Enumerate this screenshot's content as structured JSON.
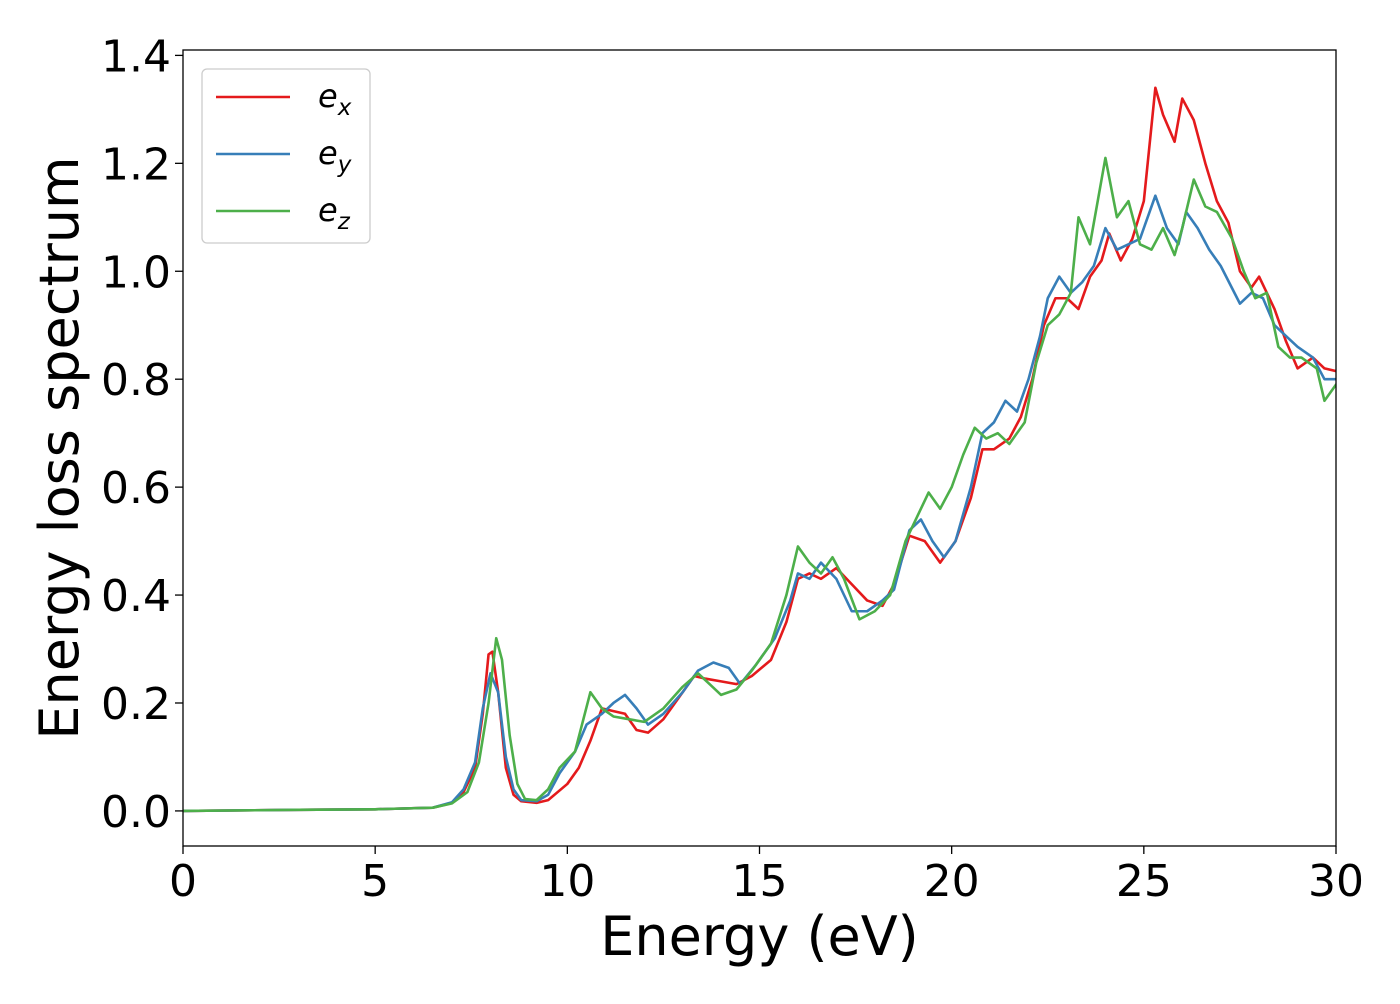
{
  "chart_data": {
    "type": "line",
    "title": "",
    "xlabel": "Energy (eV)",
    "ylabel": "Energy loss spectrum",
    "xlim": [
      0,
      30
    ],
    "ylim": [
      -0.065,
      1.41
    ],
    "xticks": [
      0,
      5,
      10,
      15,
      20,
      25,
      30
    ],
    "xtick_labels": [
      "0",
      "5",
      "10",
      "15",
      "20",
      "25",
      "30"
    ],
    "yticks": [
      0.0,
      0.2,
      0.4,
      0.6,
      0.8,
      1.0,
      1.2,
      1.4
    ],
    "ytick_labels": [
      "0.0",
      "0.2",
      "0.4",
      "0.6",
      "0.8",
      "1.0",
      "1.2",
      "1.4"
    ],
    "grid": false,
    "legend": {
      "position": "top-left"
    },
    "series": [
      {
        "name": "e_x",
        "legend_base": "e",
        "legend_sub": "x",
        "color": "#e41a1c",
        "points": [
          [
            0,
            0
          ],
          [
            3,
            0.002
          ],
          [
            5,
            0.003
          ],
          [
            6.5,
            0.006
          ],
          [
            7,
            0.015
          ],
          [
            7.3,
            0.035
          ],
          [
            7.6,
            0.08
          ],
          [
            7.8,
            0.18
          ],
          [
            7.95,
            0.29
          ],
          [
            8.05,
            0.295
          ],
          [
            8.2,
            0.22
          ],
          [
            8.4,
            0.08
          ],
          [
            8.6,
            0.03
          ],
          [
            8.8,
            0.018
          ],
          [
            9.2,
            0.015
          ],
          [
            9.5,
            0.02
          ],
          [
            10,
            0.05
          ],
          [
            10.3,
            0.08
          ],
          [
            10.6,
            0.13
          ],
          [
            10.9,
            0.19
          ],
          [
            11.2,
            0.185
          ],
          [
            11.5,
            0.18
          ],
          [
            11.8,
            0.15
          ],
          [
            12.1,
            0.145
          ],
          [
            12.5,
            0.17
          ],
          [
            13,
            0.22
          ],
          [
            13.3,
            0.25
          ],
          [
            13.6,
            0.245
          ],
          [
            14,
            0.24
          ],
          [
            14.4,
            0.235
          ],
          [
            14.8,
            0.25
          ],
          [
            15.3,
            0.28
          ],
          [
            15.7,
            0.35
          ],
          [
            16,
            0.43
          ],
          [
            16.3,
            0.44
          ],
          [
            16.6,
            0.43
          ],
          [
            17,
            0.45
          ],
          [
            17.4,
            0.42
          ],
          [
            17.8,
            0.39
          ],
          [
            18.2,
            0.38
          ],
          [
            18.5,
            0.42
          ],
          [
            18.9,
            0.51
          ],
          [
            19.3,
            0.5
          ],
          [
            19.7,
            0.46
          ],
          [
            20.1,
            0.5
          ],
          [
            20.5,
            0.58
          ],
          [
            20.8,
            0.67
          ],
          [
            21.1,
            0.67
          ],
          [
            21.5,
            0.69
          ],
          [
            21.8,
            0.73
          ],
          [
            22.1,
            0.8
          ],
          [
            22.4,
            0.9
          ],
          [
            22.7,
            0.95
          ],
          [
            23,
            0.95
          ],
          [
            23.3,
            0.93
          ],
          [
            23.6,
            0.99
          ],
          [
            23.9,
            1.02
          ],
          [
            24.1,
            1.07
          ],
          [
            24.4,
            1.02
          ],
          [
            24.7,
            1.06
          ],
          [
            25,
            1.13
          ],
          [
            25.3,
            1.34
          ],
          [
            25.5,
            1.29
          ],
          [
            25.8,
            1.24
          ],
          [
            26,
            1.32
          ],
          [
            26.3,
            1.28
          ],
          [
            26.6,
            1.2
          ],
          [
            26.9,
            1.13
          ],
          [
            27.2,
            1.09
          ],
          [
            27.5,
            1.0
          ],
          [
            27.8,
            0.97
          ],
          [
            28,
            0.99
          ],
          [
            28.4,
            0.93
          ],
          [
            28.7,
            0.87
          ],
          [
            29,
            0.82
          ],
          [
            29.4,
            0.84
          ],
          [
            29.7,
            0.82
          ],
          [
            30,
            0.815
          ]
        ]
      },
      {
        "name": "e_y",
        "legend_base": "e",
        "legend_sub": "y",
        "color": "#377eb8",
        "points": [
          [
            0,
            0
          ],
          [
            3,
            0.002
          ],
          [
            5,
            0.003
          ],
          [
            6.5,
            0.006
          ],
          [
            7,
            0.016
          ],
          [
            7.3,
            0.04
          ],
          [
            7.6,
            0.09
          ],
          [
            7.8,
            0.19
          ],
          [
            8.0,
            0.255
          ],
          [
            8.2,
            0.22
          ],
          [
            8.4,
            0.1
          ],
          [
            8.6,
            0.04
          ],
          [
            8.8,
            0.02
          ],
          [
            9.2,
            0.018
          ],
          [
            9.5,
            0.03
          ],
          [
            9.8,
            0.07
          ],
          [
            10.2,
            0.11
          ],
          [
            10.5,
            0.16
          ],
          [
            10.9,
            0.18
          ],
          [
            11.2,
            0.2
          ],
          [
            11.5,
            0.215
          ],
          [
            11.8,
            0.19
          ],
          [
            12.1,
            0.16
          ],
          [
            12.5,
            0.18
          ],
          [
            13,
            0.22
          ],
          [
            13.4,
            0.26
          ],
          [
            13.8,
            0.275
          ],
          [
            14.2,
            0.265
          ],
          [
            14.5,
            0.235
          ],
          [
            14.9,
            0.27
          ],
          [
            15.4,
            0.32
          ],
          [
            15.8,
            0.39
          ],
          [
            16,
            0.44
          ],
          [
            16.3,
            0.43
          ],
          [
            16.6,
            0.46
          ],
          [
            17,
            0.43
          ],
          [
            17.4,
            0.37
          ],
          [
            17.8,
            0.37
          ],
          [
            18.2,
            0.39
          ],
          [
            18.5,
            0.41
          ],
          [
            18.9,
            0.52
          ],
          [
            19.2,
            0.54
          ],
          [
            19.5,
            0.5
          ],
          [
            19.8,
            0.47
          ],
          [
            20.1,
            0.5
          ],
          [
            20.5,
            0.6
          ],
          [
            20.8,
            0.7
          ],
          [
            21.1,
            0.72
          ],
          [
            21.4,
            0.76
          ],
          [
            21.7,
            0.74
          ],
          [
            22,
            0.8
          ],
          [
            22.3,
            0.88
          ],
          [
            22.5,
            0.95
          ],
          [
            22.8,
            0.99
          ],
          [
            23.1,
            0.96
          ],
          [
            23.4,
            0.98
          ],
          [
            23.7,
            1.01
          ],
          [
            24,
            1.08
          ],
          [
            24.3,
            1.04
          ],
          [
            24.6,
            1.05
          ],
          [
            24.9,
            1.06
          ],
          [
            25.3,
            1.14
          ],
          [
            25.6,
            1.08
          ],
          [
            25.9,
            1.05
          ],
          [
            26.1,
            1.11
          ],
          [
            26.4,
            1.08
          ],
          [
            26.7,
            1.04
          ],
          [
            27,
            1.01
          ],
          [
            27.5,
            0.94
          ],
          [
            27.8,
            0.96
          ],
          [
            28.1,
            0.95
          ],
          [
            28.4,
            0.9
          ],
          [
            28.7,
            0.88
          ],
          [
            29,
            0.86
          ],
          [
            29.4,
            0.84
          ],
          [
            29.7,
            0.8
          ],
          [
            30,
            0.8
          ]
        ]
      },
      {
        "name": "e_z",
        "legend_base": "e",
        "legend_sub": "z",
        "color": "#4daf4a",
        "points": [
          [
            0,
            0
          ],
          [
            3,
            0.002
          ],
          [
            5,
            0.003
          ],
          [
            6.5,
            0.006
          ],
          [
            7,
            0.014
          ],
          [
            7.4,
            0.035
          ],
          [
            7.7,
            0.09
          ],
          [
            7.95,
            0.2
          ],
          [
            8.15,
            0.32
          ],
          [
            8.3,
            0.28
          ],
          [
            8.5,
            0.14
          ],
          [
            8.7,
            0.05
          ],
          [
            8.9,
            0.022
          ],
          [
            9.2,
            0.02
          ],
          [
            9.5,
            0.04
          ],
          [
            9.8,
            0.08
          ],
          [
            10.2,
            0.11
          ],
          [
            10.6,
            0.22
          ],
          [
            10.9,
            0.19
          ],
          [
            11.2,
            0.175
          ],
          [
            11.6,
            0.17
          ],
          [
            12,
            0.165
          ],
          [
            12.5,
            0.19
          ],
          [
            13,
            0.23
          ],
          [
            13.4,
            0.255
          ],
          [
            13.7,
            0.235
          ],
          [
            14,
            0.215
          ],
          [
            14.4,
            0.225
          ],
          [
            14.8,
            0.26
          ],
          [
            15.3,
            0.31
          ],
          [
            15.7,
            0.4
          ],
          [
            16,
            0.49
          ],
          [
            16.3,
            0.46
          ],
          [
            16.6,
            0.44
          ],
          [
            16.9,
            0.47
          ],
          [
            17.2,
            0.43
          ],
          [
            17.6,
            0.355
          ],
          [
            18,
            0.37
          ],
          [
            18.4,
            0.4
          ],
          [
            18.8,
            0.5
          ],
          [
            19.1,
            0.545
          ],
          [
            19.4,
            0.59
          ],
          [
            19.7,
            0.56
          ],
          [
            20,
            0.6
          ],
          [
            20.3,
            0.66
          ],
          [
            20.6,
            0.71
          ],
          [
            20.9,
            0.69
          ],
          [
            21.2,
            0.7
          ],
          [
            21.5,
            0.68
          ],
          [
            21.9,
            0.72
          ],
          [
            22.2,
            0.83
          ],
          [
            22.5,
            0.9
          ],
          [
            22.8,
            0.92
          ],
          [
            23.1,
            0.96
          ],
          [
            23.3,
            1.1
          ],
          [
            23.6,
            1.05
          ],
          [
            24,
            1.21
          ],
          [
            24.3,
            1.1
          ],
          [
            24.6,
            1.13
          ],
          [
            24.9,
            1.05
          ],
          [
            25.2,
            1.04
          ],
          [
            25.5,
            1.08
          ],
          [
            25.8,
            1.03
          ],
          [
            26,
            1.08
          ],
          [
            26.3,
            1.17
          ],
          [
            26.6,
            1.12
          ],
          [
            26.9,
            1.11
          ],
          [
            27.3,
            1.06
          ],
          [
            27.6,
            1.0
          ],
          [
            27.9,
            0.95
          ],
          [
            28.2,
            0.96
          ],
          [
            28.5,
            0.86
          ],
          [
            28.8,
            0.84
          ],
          [
            29.1,
            0.84
          ],
          [
            29.5,
            0.82
          ],
          [
            29.7,
            0.76
          ],
          [
            30,
            0.79
          ]
        ]
      }
    ]
  }
}
